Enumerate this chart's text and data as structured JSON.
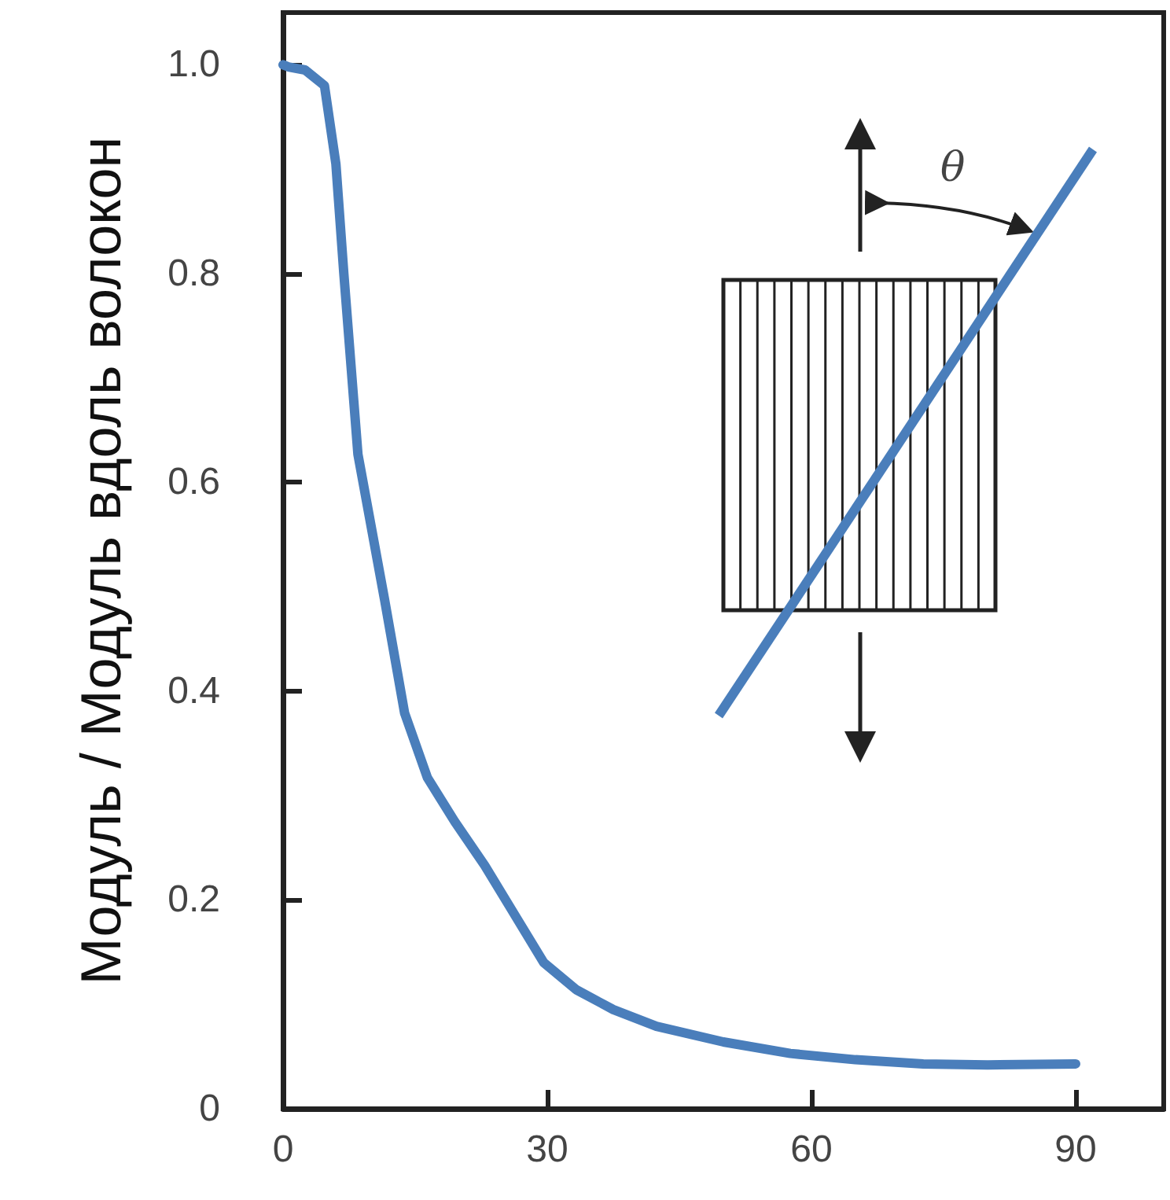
{
  "chart_data": {
    "type": "line",
    "ylabel": "Модуль / Модуль вдоль волокон",
    "x": [
      0,
      0.6,
      2.5,
      4.7,
      6,
      6.9,
      8.5,
      11.5,
      13.8,
      16.4,
      19.5,
      22.9,
      26,
      29.6,
      33.3,
      37.5,
      42.4,
      50,
      57.6,
      65,
      72.7,
      80,
      90
    ],
    "series": [
      {
        "color": "#4a7ebb",
        "values": [
          1.0,
          0.998,
          0.995,
          0.98,
          0.905,
          0.8,
          0.627,
          0.489,
          0.379,
          0.317,
          0.275,
          0.233,
          0.19,
          0.14,
          0.114,
          0.095,
          0.079,
          0.064,
          0.053,
          0.047,
          0.043,
          0.042,
          0.043
        ]
      }
    ],
    "xlim": [
      0,
      100
    ],
    "xticks": [
      0,
      30,
      60,
      90
    ],
    "ylim": [
      0,
      1.05
    ],
    "yticks": [
      0,
      0.2,
      0.4,
      0.6,
      0.8,
      {
        "value": 1,
        "label": "1.0"
      }
    ],
    "annotations": [
      "θ"
    ],
    "grid": false,
    "marker": "none",
    "line_style": "solid"
  }
}
